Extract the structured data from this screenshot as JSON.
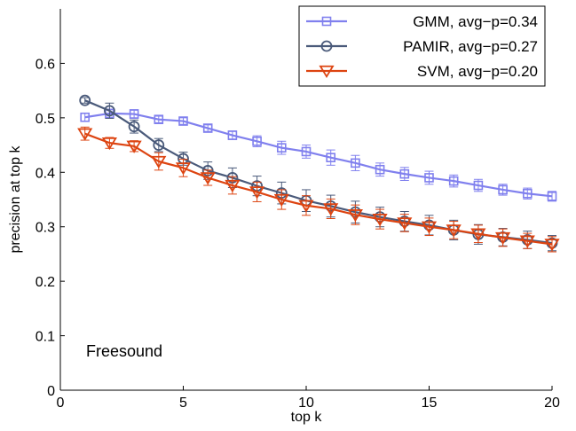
{
  "chart_data": {
    "type": "line",
    "xlabel": "top k",
    "ylabel": "precision at top k",
    "xlim": [
      0,
      20
    ],
    "ylim": [
      0,
      0.7
    ],
    "xticks": [
      0,
      5,
      10,
      15,
      20
    ],
    "xtick_labels": [
      "0",
      "5",
      "10",
      "15",
      "20"
    ],
    "yticks": [
      0,
      0.1,
      0.2,
      0.3,
      0.4,
      0.5,
      0.6
    ],
    "ytick_labels": [
      "0",
      "0.1",
      "0.2",
      "0.3",
      "0.4",
      "0.5",
      "0.6"
    ],
    "grid": false,
    "legend_position": "top-right",
    "annotation": "Freesound",
    "x": [
      1,
      2,
      3,
      4,
      5,
      6,
      7,
      8,
      9,
      10,
      11,
      12,
      13,
      14,
      15,
      16,
      17,
      18,
      19,
      20
    ],
    "series": [
      {
        "name": "GMM, avg−p=0.34",
        "marker": "square",
        "color": "#8080ee",
        "values": [
          0.501,
          0.508,
          0.507,
          0.497,
          0.494,
          0.481,
          0.468,
          0.457,
          0.445,
          0.438,
          0.427,
          0.417,
          0.405,
          0.397,
          0.39,
          0.384,
          0.376,
          0.368,
          0.361,
          0.356
        ],
        "errors": [
          0.007,
          0.008,
          0.008,
          0.006,
          0.006,
          0.006,
          0.008,
          0.01,
          0.012,
          0.012,
          0.014,
          0.014,
          0.012,
          0.012,
          0.012,
          0.011,
          0.011,
          0.01,
          0.01,
          0.009
        ]
      },
      {
        "name": "PAMIR, avg−p=0.27",
        "marker": "circle",
        "color": "#4a5a7a",
        "values": [
          0.532,
          0.513,
          0.484,
          0.45,
          0.425,
          0.403,
          0.39,
          0.375,
          0.362,
          0.348,
          0.338,
          0.327,
          0.318,
          0.31,
          0.303,
          0.294,
          0.286,
          0.281,
          0.276,
          0.27
        ],
        "errors": [
          0.005,
          0.014,
          0.012,
          0.012,
          0.012,
          0.016,
          0.018,
          0.018,
          0.02,
          0.02,
          0.02,
          0.02,
          0.018,
          0.018,
          0.018,
          0.018,
          0.018,
          0.016,
          0.016,
          0.014
        ]
      },
      {
        "name": "SVM, avg−p=0.20",
        "marker": "triangle-down",
        "color": "#dd4411",
        "values": [
          0.471,
          0.454,
          0.448,
          0.42,
          0.408,
          0.39,
          0.376,
          0.364,
          0.35,
          0.339,
          0.333,
          0.322,
          0.314,
          0.307,
          0.3,
          0.294,
          0.287,
          0.28,
          0.274,
          0.268
        ],
        "errors": [
          0.012,
          0.01,
          0.01,
          0.016,
          0.016,
          0.014,
          0.016,
          0.018,
          0.018,
          0.018,
          0.018,
          0.018,
          0.018,
          0.016,
          0.016,
          0.016,
          0.016,
          0.016,
          0.014,
          0.014
        ]
      }
    ]
  }
}
